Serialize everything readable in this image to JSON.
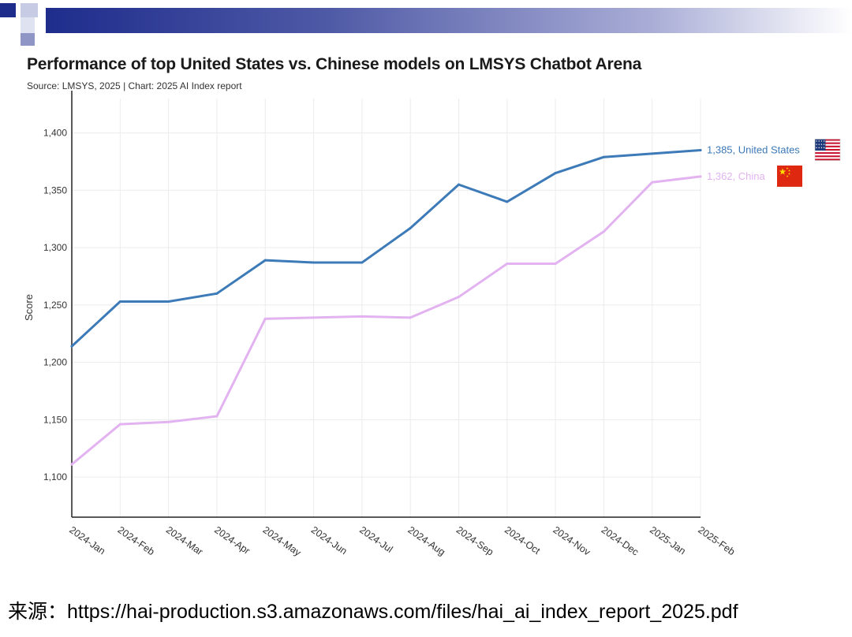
{
  "slide": {
    "accent_color": "#1e2c8c",
    "source_label": "来源：",
    "source_url": "https://hai-production.s3.amazonaws.com/files/hai_ai_index_report_2025.pdf"
  },
  "chart_data": {
    "type": "line",
    "title": "Performance of top United States vs. Chinese models on LMSYS Chatbot Arena",
    "subtitle": "Source: LMSYS, 2025 | Chart: 2025 AI Index report",
    "xlabel": "",
    "ylabel": "Score",
    "categories": [
      "2024-Jan",
      "2024-Feb",
      "2024-Mar",
      "2024-Apr",
      "2024-May",
      "2024-Jun",
      "2024-Jul",
      "2024-Aug",
      "2024-Sep",
      "2024-Oct",
      "2024-Nov",
      "2024-Dec",
      "2025-Jan",
      "2025-Feb"
    ],
    "ylim": [
      1065,
      1430
    ],
    "yticks": [
      1100,
      1150,
      1200,
      1250,
      1300,
      1350,
      1400
    ],
    "grid": true,
    "series": [
      {
        "name": "United States",
        "color": "#3d7ab8",
        "values": [
          1214,
          1253,
          1253,
          1260,
          1289,
          1287,
          1287,
          1317,
          1355,
          1340,
          1365,
          1379,
          1382,
          1385
        ],
        "end_label": "1,385, United States",
        "flag_icon": "us-flag-icon"
      },
      {
        "name": "China",
        "color": "#e2b3f0",
        "values": [
          1111,
          1146,
          1148,
          1153,
          1238,
          1239,
          1240,
          1239,
          1257,
          1286,
          1286,
          1314,
          1357,
          1362
        ],
        "end_label": "1,362, China",
        "flag_icon": "china-flag-icon"
      }
    ]
  }
}
